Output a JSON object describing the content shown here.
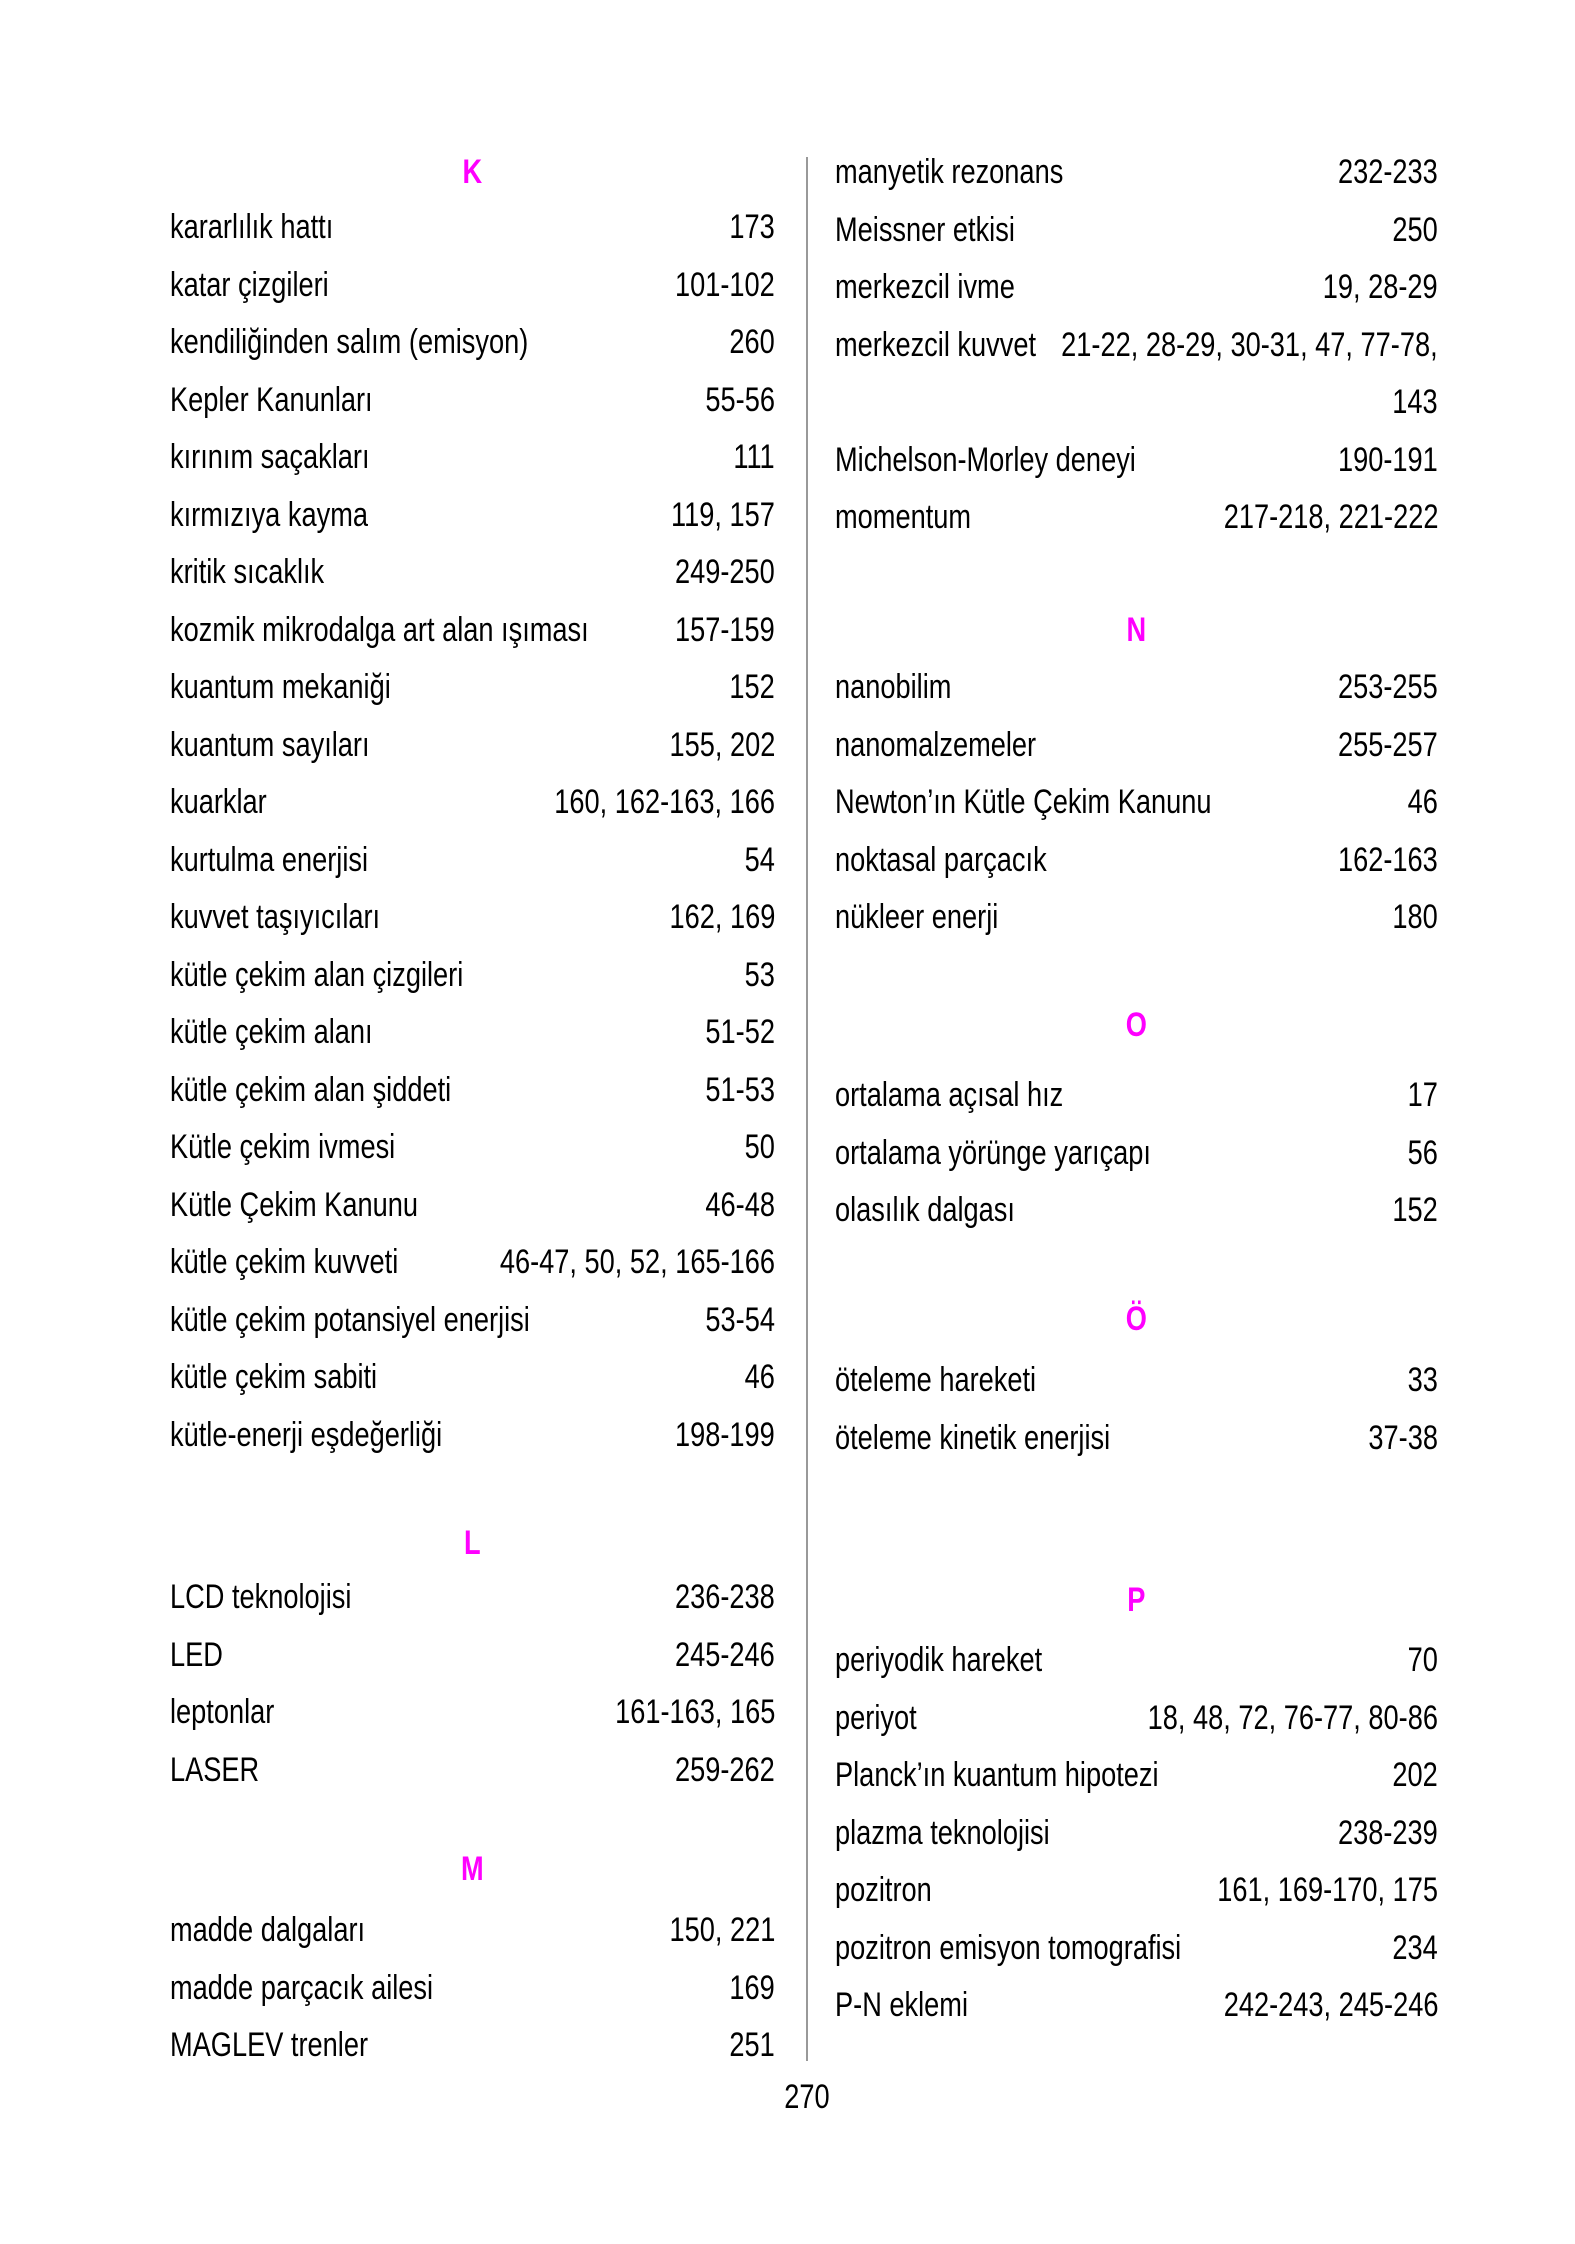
{
  "page": {
    "number": "270"
  },
  "accent_color": "#ff00ff",
  "divider_color": "#999999",
  "index": {
    "left_column": [
      {
        "type": "header",
        "label": "K"
      },
      {
        "type": "entries",
        "items": [
          {
            "term": "kararlılık hattı",
            "pages": "173"
          },
          {
            "term": "katar çizgileri",
            "pages": "101-102"
          },
          {
            "term": "kendiliğinden salım (emisyon)",
            "pages": "260"
          },
          {
            "term": "Kepler Kanunları",
            "pages": "55-56"
          },
          {
            "term": "kırınım saçakları",
            "pages": "111"
          },
          {
            "term": "kırmızıya kayma",
            "pages": "119, 157"
          },
          {
            "term": "kritik sıcaklık",
            "pages": "249-250"
          },
          {
            "term": "kozmik mikrodalga art alan ışıması",
            "pages": "157-159"
          },
          {
            "term": "kuantum mekaniği",
            "pages": "152"
          },
          {
            "term": "kuantum sayıları",
            "pages": "155, 202"
          },
          {
            "term": "kuarklar",
            "pages": "160, 162-163, 166"
          },
          {
            "term": "kurtulma enerjisi",
            "pages": "54"
          },
          {
            "term": "kuvvet taşıyıcıları",
            "pages": "162, 169"
          },
          {
            "term": "kütle çekim alan çizgileri",
            "pages": "53"
          },
          {
            "term": "kütle çekim alanı",
            "pages": "51-52"
          },
          {
            "term": "kütle çekim alan şiddeti",
            "pages": "51-53"
          },
          {
            "term": "Kütle çekim ivmesi",
            "pages": "50"
          },
          {
            "term": "Kütle Çekim Kanunu",
            "pages": "46-48"
          },
          {
            "term": "kütle çekim kuvveti",
            "pages": "46-47, 50, 52, 165-166"
          },
          {
            "term": "kütle çekim potansiyel enerjisi",
            "pages": "53-54"
          },
          {
            "term": "kütle çekim sabiti",
            "pages": "46"
          },
          {
            "term": "kütle-enerji eşdeğerliği",
            "pages": "198-199"
          }
        ]
      },
      {
        "type": "header",
        "label": "L"
      },
      {
        "type": "entries",
        "items": [
          {
            "term": "LCD teknolojisi",
            "pages": "236-238"
          },
          {
            "term": "LED",
            "pages": "245-246"
          },
          {
            "term": "leptonlar",
            "pages": "161-163, 165"
          },
          {
            "term": "LASER",
            "pages": "259-262"
          }
        ]
      },
      {
        "type": "header",
        "label": "M"
      },
      {
        "type": "entries",
        "items": [
          {
            "term": "madde dalgaları",
            "pages": "150, 221"
          },
          {
            "term": "madde parçacık ailesi",
            "pages": "169"
          },
          {
            "term": "MAGLEV trenler",
            "pages": "251"
          }
        ]
      }
    ],
    "right_column": [
      {
        "type": "entries",
        "items": [
          {
            "term": "manyetik rezonans",
            "pages": "232-233"
          },
          {
            "term": "Meissner etkisi",
            "pages": "250"
          },
          {
            "term": "merkezcil ivme",
            "pages": "19, 28-29"
          },
          {
            "term": "merkezcil kuvvet",
            "pages": "21-22, 28-29, 30-31, 47, 77-78,",
            "pages2": "143"
          },
          {
            "term": "Michelson-Morley deneyi",
            "pages": "190-191"
          },
          {
            "term": "momentum",
            "pages": "217-218, 221-222"
          }
        ]
      },
      {
        "type": "header",
        "label": "N"
      },
      {
        "type": "entries",
        "items": [
          {
            "term": "nanobilim",
            "pages": "253-255"
          },
          {
            "term": "nanomalzemeler",
            "pages": "255-257"
          },
          {
            "term": "Newton’ın Kütle Çekim Kanunu",
            "pages": "46"
          },
          {
            "term": "noktasal parçacık",
            "pages": "162-163"
          },
          {
            "term": "nükleer enerji",
            "pages": "180"
          }
        ]
      },
      {
        "type": "header",
        "label": "O"
      },
      {
        "type": "entries",
        "items": [
          {
            "term": "ortalama açısal hız",
            "pages": "17"
          },
          {
            "term": "ortalama yörünge yarıçapı",
            "pages": "56"
          },
          {
            "term": "olasılık dalgası",
            "pages": "152"
          }
        ]
      },
      {
        "type": "header",
        "label": "Ö"
      },
      {
        "type": "entries",
        "items": [
          {
            "term": "öteleme hareketi",
            "pages": "33"
          },
          {
            "term": "öteleme kinetik enerjisi",
            "pages": "37-38"
          }
        ]
      },
      {
        "type": "header",
        "label": "P"
      },
      {
        "type": "entries",
        "items": [
          {
            "term": "periyodik hareket",
            "pages": "70"
          },
          {
            "term": "periyot",
            "pages": "18, 48, 72, 76-77, 80-86"
          },
          {
            "term": "Planck’ın kuantum hipotezi",
            "pages": "202"
          },
          {
            "term": "plazma teknolojisi",
            "pages": "238-239"
          },
          {
            "term": "pozitron",
            "pages": "161, 169-170, 175"
          },
          {
            "term": "pozitron emisyon tomografisi",
            "pages": "234"
          },
          {
            "term": "P-N eklemi",
            "pages": "242-243, 245-246"
          }
        ]
      }
    ]
  }
}
